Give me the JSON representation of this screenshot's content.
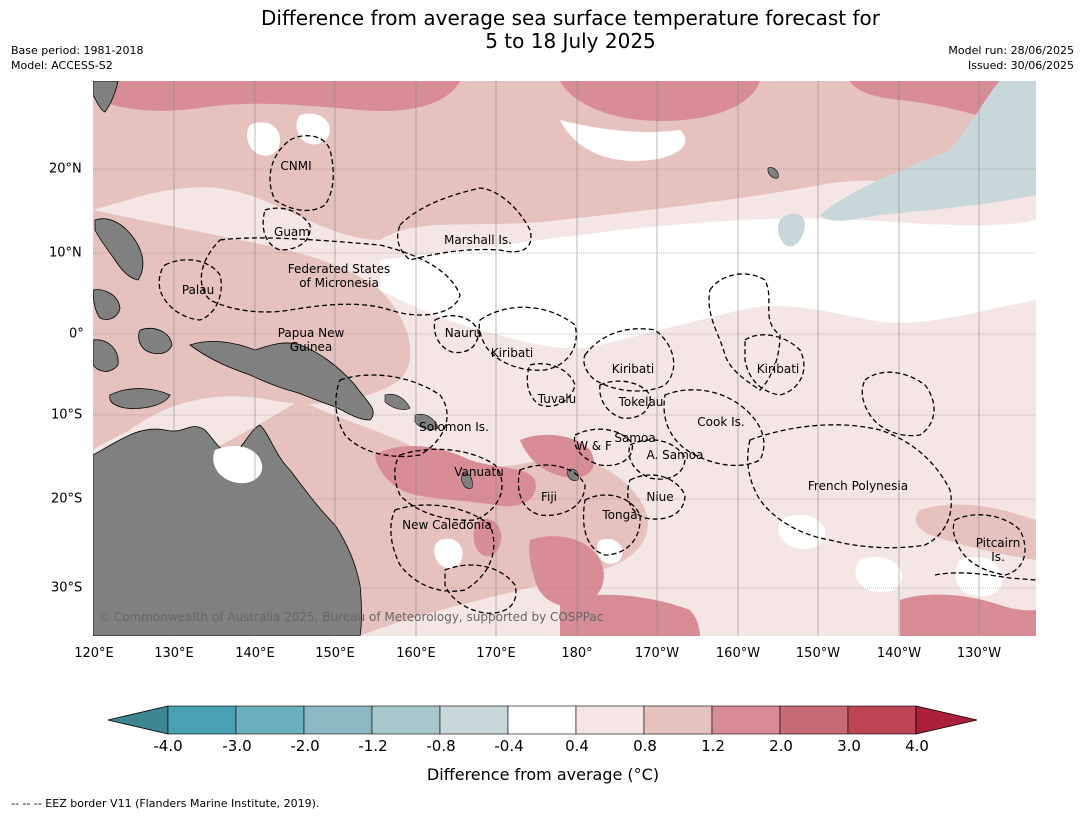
{
  "title": {
    "line1": "Difference from average sea surface temperature forecast for",
    "line2": "5 to 18 July 2025"
  },
  "meta_left": {
    "base_period": "Base period: 1981-2018",
    "model": "Model: ACCESS-S2"
  },
  "meta_right": {
    "model_run": "Model run: 28/06/2025",
    "issued": "Issued: 30/06/2025"
  },
  "lat_ticks": [
    "20°N",
    "10°N",
    "0°",
    "10°S",
    "20°S",
    "30°S"
  ],
  "lon_ticks": [
    "120°E",
    "130°E",
    "140°E",
    "150°E",
    "160°E",
    "170°E",
    "180°",
    "170°W",
    "160°W",
    "150°W",
    "140°W",
    "130°W"
  ],
  "places": {
    "cnmi": "CNMI",
    "guam": "Guam",
    "marshall": "Marshall Is.",
    "fsm_1": "Federated States",
    "fsm_2": "of Micronesia",
    "palau": "Palau",
    "nauru": "Nauru",
    "png_1": "Papua New",
    "png_2": "Guinea",
    "kiribati_w": "Kiribati",
    "kiribati_c": "Kiribati",
    "kiribati_e": "Kiribati",
    "tuvalu": "Tuvalu",
    "tokelau": "Tokelau",
    "cook": "Cook Is.",
    "solomon": "Solomon Is.",
    "wf": "W & F",
    "samoa": "Samoa",
    "asamoa": "A. Samoa",
    "vanuatu": "Vanuatu",
    "fiji": "Fiji",
    "niue": "Niue",
    "frpoly": "French Polynesia",
    "tonga": "Tonga",
    "newcal": "New Caledonia",
    "pitcairn_1": "Pitcairn",
    "pitcairn_2": "Is."
  },
  "copyright": "© Commonwealth of Australia 2025, Bureau of Meteorology, supported by COSPPac",
  "colorbar": {
    "ticks": [
      "-4.0",
      "-3.0",
      "-2.0",
      "-1.2",
      "-0.8",
      "-0.4",
      "0.4",
      "0.8",
      "1.2",
      "2.0",
      "3.0",
      "4.0"
    ],
    "colors": [
      "#3d8692",
      "#4aa1b5",
      "#6dafbf",
      "#8db7c2",
      "#a8c8cc",
      "#c8d7da",
      "#ffffff",
      "#f4e6e5",
      "#e6c2bf",
      "#d88c96",
      "#c86a74",
      "#be4455",
      "#ad1f3a"
    ],
    "title": "Difference from average (°C)"
  },
  "footnote": "--  --  -- EEZ border V11 (Flanders Marine Institute, 2019).",
  "colors": {
    "land": "#808080",
    "graticule": "#888888"
  }
}
